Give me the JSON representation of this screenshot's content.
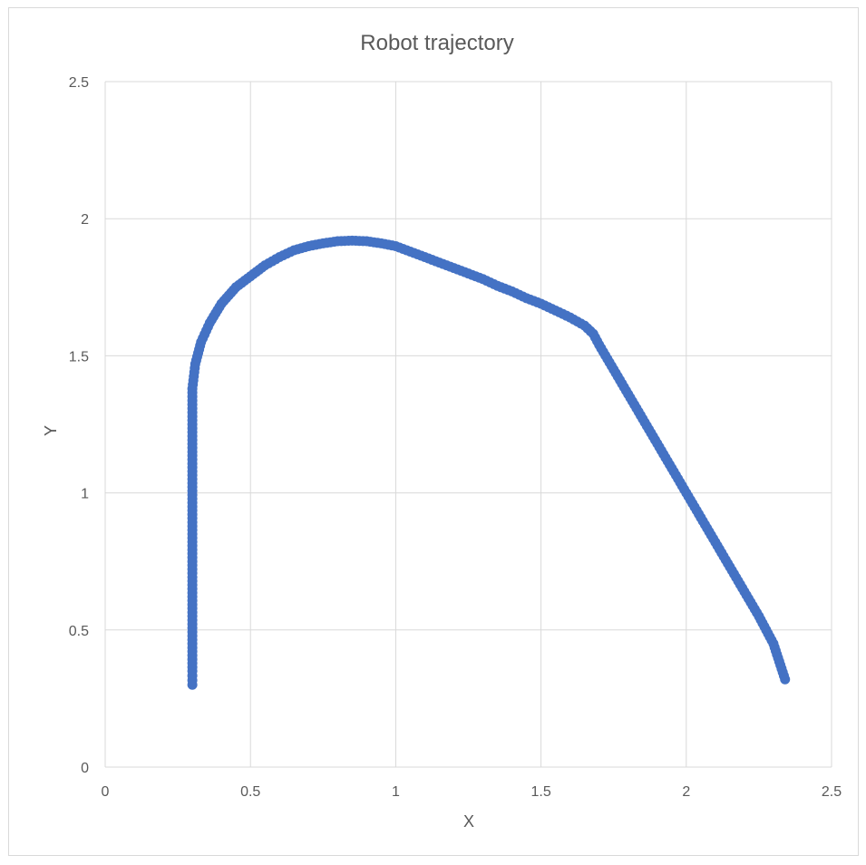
{
  "chart_data": {
    "type": "scatter",
    "title": "Robot trajectory",
    "xlabel": "X",
    "ylabel": "Y",
    "xlim": [
      0,
      2.5
    ],
    "ylim": [
      0,
      2.5
    ],
    "x_ticks": [
      "0",
      "0.5",
      "1",
      "1.5",
      "2",
      "2.5"
    ],
    "y_ticks": [
      "0",
      "0.5",
      "1",
      "1.5",
      "2",
      "2.5"
    ],
    "grid": true,
    "marker_color": "#4472C4",
    "series": [
      {
        "x": [
          0.3,
          0.3,
          0.3,
          0.3,
          0.3,
          0.3,
          0.3,
          0.3,
          0.3,
          0.3,
          0.3,
          0.3,
          0.31,
          0.33,
          0.36,
          0.4,
          0.45,
          0.5,
          0.55,
          0.6,
          0.65,
          0.7,
          0.75,
          0.8,
          0.85,
          0.9,
          0.95,
          1.0,
          1.05,
          1.1,
          1.15,
          1.2,
          1.25,
          1.3,
          1.35,
          1.4,
          1.45,
          1.5,
          1.55,
          1.6,
          1.65,
          1.68,
          1.7,
          1.75,
          1.8,
          1.85,
          1.9,
          1.95,
          2.0,
          2.05,
          2.1,
          2.15,
          2.2,
          2.25,
          2.3,
          2.34
        ],
        "y": [
          0.3,
          0.35,
          0.45,
          0.55,
          0.65,
          0.75,
          0.85,
          0.95,
          1.05,
          1.15,
          1.25,
          1.38,
          1.47,
          1.55,
          1.62,
          1.69,
          1.75,
          1.79,
          1.83,
          1.86,
          1.885,
          1.9,
          1.91,
          1.918,
          1.92,
          1.918,
          1.91,
          1.9,
          1.88,
          1.86,
          1.84,
          1.82,
          1.8,
          1.78,
          1.755,
          1.735,
          1.71,
          1.69,
          1.665,
          1.64,
          1.61,
          1.58,
          1.54,
          1.45,
          1.36,
          1.27,
          1.18,
          1.09,
          1.0,
          0.91,
          0.82,
          0.73,
          0.64,
          0.55,
          0.45,
          0.32
        ]
      }
    ]
  }
}
